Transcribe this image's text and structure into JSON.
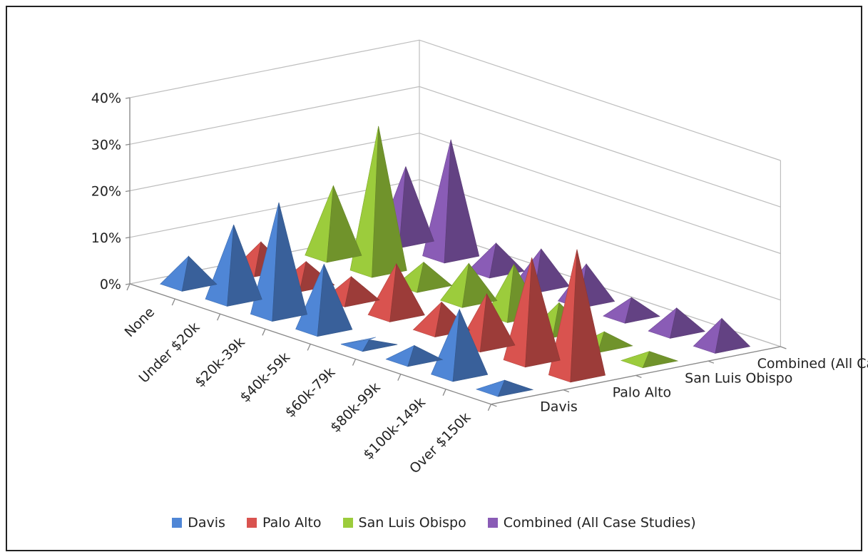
{
  "chart_data": {
    "type": "bar",
    "subtype": "3d-pyramid",
    "categories": [
      "None",
      "Under $20k",
      "$20k-39k",
      "$40k-59k",
      "$60k-79k",
      "$80k-99k",
      "$100k-149k",
      "Over $150k"
    ],
    "series": [
      {
        "name": "Davis",
        "color": "#4f86d6",
        "values": [
          6,
          16,
          24,
          14,
          1,
          3,
          14,
          2
        ]
      },
      {
        "name": "Palo Alto",
        "color": "#d9534f",
        "values": [
          6,
          5,
          5,
          11,
          6,
          11,
          22,
          27
        ]
      },
      {
        "name": "San Luis Obispo",
        "color": "#9ccc3c",
        "values": [
          15,
          31,
          5,
          8,
          11,
          6,
          3,
          2
        ]
      },
      {
        "name": "Combined (All Case Studies)",
        "color": "#8a5cb6",
        "values": [
          16,
          25,
          6,
          8,
          8,
          4,
          5,
          6
        ]
      }
    ],
    "y_ticks": [
      "0%",
      "10%",
      "20%",
      "30%",
      "40%"
    ],
    "ylim": [
      0,
      40
    ],
    "y_unit": "%",
    "grid": true,
    "legend_position": "bottom",
    "title": "",
    "xlabel": "",
    "ylabel": ""
  }
}
